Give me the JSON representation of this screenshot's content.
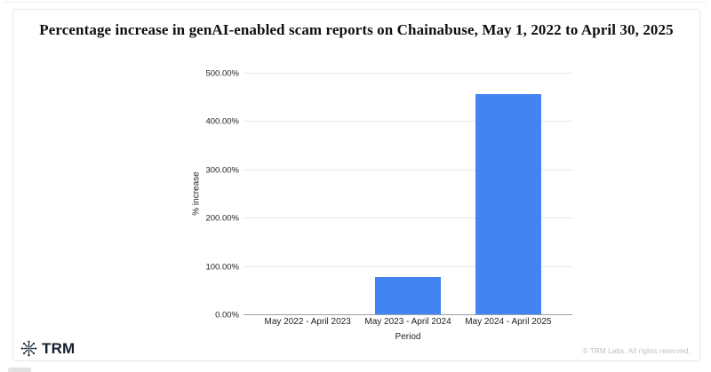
{
  "chart_data": {
    "type": "bar",
    "title": "Percentage increase in genAI-enabled scam reports on Chainabuse, May 1, 2022 to April 30, 2025",
    "categories": [
      "May 2022 - April 2023",
      "May 2023 - April 2024",
      "May 2024 - April 2025"
    ],
    "values": [
      0,
      78,
      456
    ],
    "xlabel": "Period",
    "ylabel": "% increase",
    "ylim": [
      0,
      500
    ],
    "yticks": [
      0,
      100,
      200,
      300,
      400,
      500
    ],
    "ytick_labels": [
      "0.00%",
      "100.00%",
      "200.00%",
      "300.00%",
      "400.00%",
      "500.00%"
    ],
    "grid": true,
    "legend": "none",
    "bar_color": "#4384f3"
  },
  "footer": {
    "brand": "TRM",
    "brand_icon": "trm-spark-icon",
    "copyright": "© TRM Labs. All rights reserved."
  },
  "colors": {
    "bar": "#4384f3",
    "gridline": "#e9e9e9",
    "axis_line": "#9aa0a6",
    "card_border": "#e8e8e8",
    "brand_navy": "#141f30",
    "copyright_gray": "#bdbdbd"
  }
}
